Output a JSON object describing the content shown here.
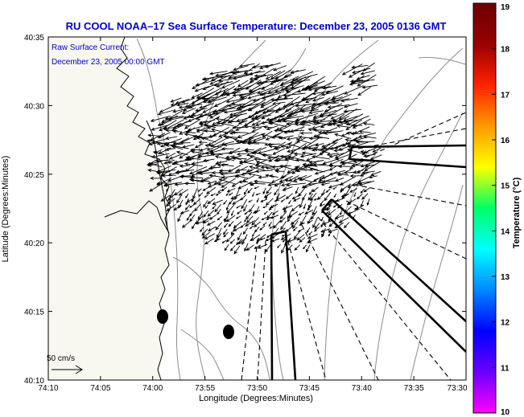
{
  "title": "RU COOL   NOAA–17  Sea Surface Temperature:  December 23, 2005 0136 GMT",
  "map": {
    "legend_line1": "Raw Surface Current:",
    "legend_line2": "December 23, 2005 00:00 GMT",
    "scale_label": "50 cm/s",
    "xlabel": "Longitude (Degrees:Minutes)",
    "ylabel": "Latitude (Degrees:Minutes)",
    "x_ticks": [
      "74:10",
      "74:05",
      "74:00",
      "73:55",
      "73:50",
      "73:45",
      "73:40",
      "73:35",
      "73:30"
    ],
    "y_ticks": [
      "40:35",
      "40:30",
      "40:25",
      "40:20",
      "40:15",
      "40:10"
    ],
    "land_color": "#f8f8f0",
    "vector_color": "#000000",
    "title_color": "#0000cc"
  },
  "colorbar": {
    "label": "Temperature (°C)",
    "ticks": [
      "19",
      "18",
      "17",
      "16",
      "15",
      "14",
      "13",
      "12",
      "11",
      "10"
    ],
    "stops": [
      "#ff00ff",
      "#6a00ff",
      "#0000ff",
      "#0088ff",
      "#00ffff",
      "#00ff66",
      "#ffff00",
      "#ff9900",
      "#ff2200",
      "#990000",
      "#6b0000"
    ]
  }
}
